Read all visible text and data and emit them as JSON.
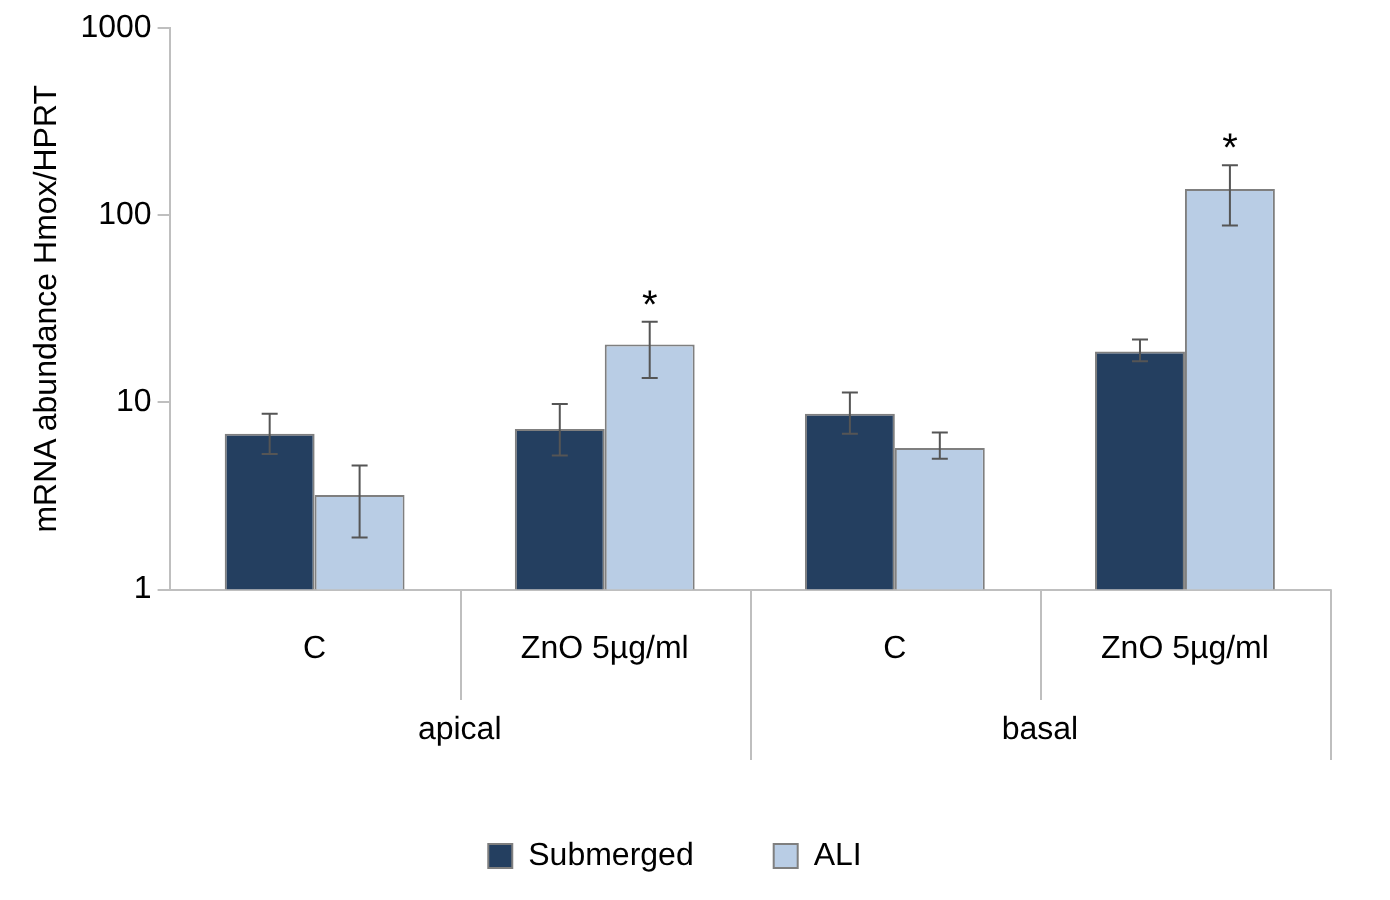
{
  "chart_data": {
    "type": "bar",
    "ylabel": "mRNA abundance Hmox/HPRT",
    "categories": [
      "C",
      "ZnO 5µg/ml",
      "C",
      "ZnO 5µg/ml"
    ],
    "annotations": [
      "apical",
      "basal"
    ],
    "series": [
      {
        "name": "Submerged",
        "color": "#243f60",
        "values": [
          6.8,
          7.2,
          8.7,
          18.7
        ],
        "errors": [
          [
            5.3,
            8.7
          ],
          [
            5.2,
            9.8
          ],
          [
            6.8,
            11.3
          ],
          [
            16.6,
            21.7
          ]
        ]
      },
      {
        "name": "ALI",
        "color": "#b9cde5",
        "values": [
          3.2,
          20.4,
          5.7,
          138
        ],
        "errors": [
          [
            1.9,
            4.6
          ],
          [
            13.5,
            27
          ],
          [
            5,
            6.9
          ],
          [
            88,
            185
          ]
        ],
        "value_labels": [
          null,
          "*",
          null,
          "*"
        ]
      }
    ],
    "log": "y",
    "ylim": [
      1,
      1000
    ],
    "yticks": [
      1,
      10,
      100,
      1000
    ],
    "grid": false,
    "legend": "bottom"
  }
}
